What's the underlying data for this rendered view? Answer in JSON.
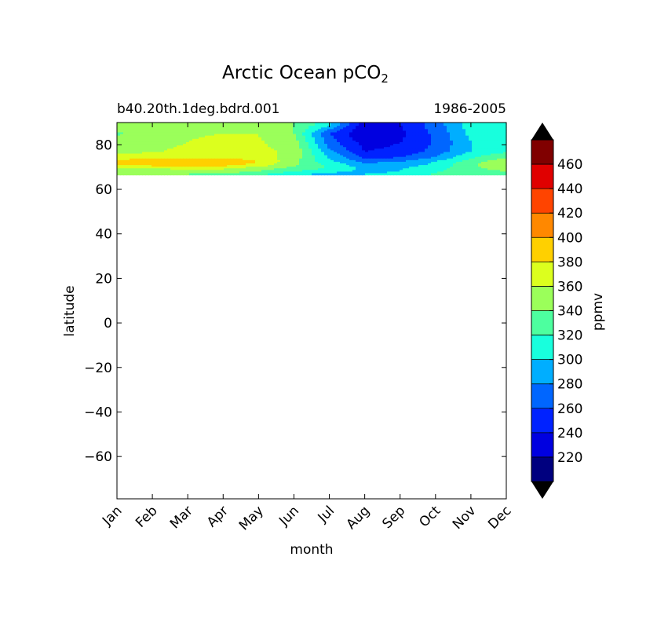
{
  "chart_data": {
    "type": "heatmap",
    "title": "Arctic Ocean pCO",
    "title_subscript": "2",
    "subtitle_left": "b40.20th.1deg.bdrd.001",
    "subtitle_right": "1986-2005",
    "xlabel": "month",
    "ylabel": "latitude",
    "x_categories": [
      "Jan",
      "Feb",
      "Mar",
      "Apr",
      "May",
      "Jun",
      "Jul",
      "Aug",
      "Sep",
      "Oct",
      "Nov",
      "Dec"
    ],
    "ylim": [
      -79,
      90
    ],
    "y_ticks": [
      80,
      60,
      40,
      20,
      0,
      -20,
      -40,
      -60
    ],
    "y_tick_labels": [
      "80",
      "60",
      "40",
      "20",
      "0",
      "−20",
      "−40",
      "−60"
    ],
    "data_lat_range": [
      66.5,
      90
    ],
    "lat_rows": [
      89,
      85,
      81,
      77,
      74,
      72.5,
      71,
      69.5,
      68,
      67
    ],
    "values": [
      [
        345,
        345,
        358,
        358,
        358,
        340,
        305,
        225,
        240,
        270,
        310,
        320
      ],
      [
        338,
        348,
        358,
        360,
        360,
        340,
        260,
        220,
        235,
        265,
        305,
        318
      ],
      [
        345,
        352,
        360,
        365,
        362,
        350,
        270,
        232,
        240,
        262,
        300,
        315
      ],
      [
        352,
        358,
        365,
        368,
        365,
        355,
        285,
        240,
        245,
        268,
        300,
        318
      ],
      [
        372,
        376,
        380,
        378,
        372,
        350,
        300,
        258,
        262,
        285,
        320,
        340
      ],
      [
        388,
        398,
        402,
        402,
        380,
        345,
        305,
        275,
        280,
        300,
        330,
        358
      ],
      [
        378,
        388,
        392,
        390,
        372,
        345,
        315,
        285,
        290,
        305,
        335,
        360
      ],
      [
        360,
        362,
        365,
        365,
        350,
        335,
        318,
        295,
        298,
        312,
        335,
        348
      ],
      [
        352,
        350,
        352,
        350,
        338,
        320,
        305,
        295,
        300,
        318,
        332,
        340
      ],
      [
        345,
        340,
        340,
        338,
        325,
        305,
        295,
        300,
        305,
        322,
        330,
        335
      ]
    ],
    "colorbar": {
      "label": "ppmv",
      "levels": [
        200,
        220,
        240,
        260,
        280,
        300,
        320,
        340,
        360,
        380,
        400,
        420,
        440,
        460,
        480
      ],
      "tick_labels": [
        "220",
        "240",
        "260",
        "280",
        "300",
        "320",
        "340",
        "360",
        "380",
        "400",
        "420",
        "440",
        "460"
      ],
      "colors": [
        "#00007f",
        "#0000e0",
        "#0022ff",
        "#0066ff",
        "#00aeff",
        "#18ffdd",
        "#4dff9f",
        "#9bff5a",
        "#dcff1e",
        "#ffd000",
        "#ff8800",
        "#ff4400",
        "#e00000",
        "#800000"
      ],
      "extend": "both",
      "under_color": "#000000",
      "over_color": "#000000"
    }
  }
}
